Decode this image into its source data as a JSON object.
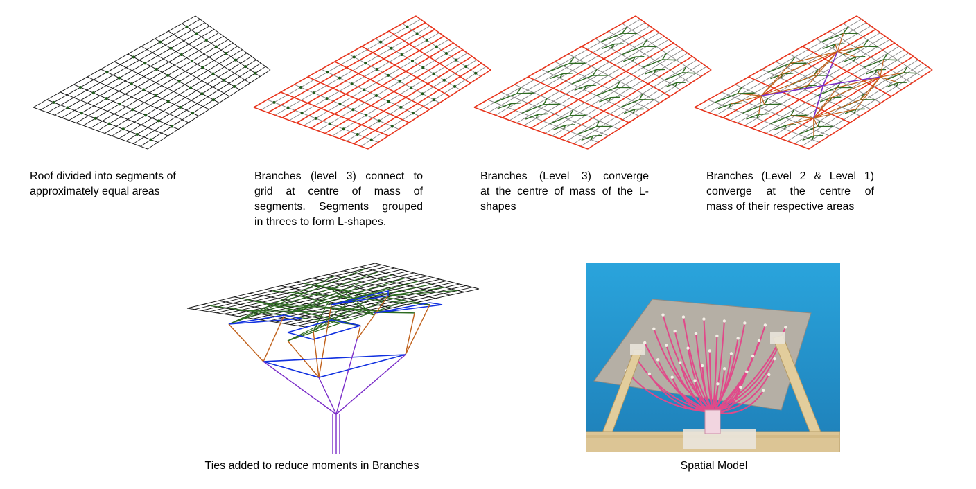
{
  "captions": {
    "panel1": [
      "Roof divided into segments of",
      "approximately equal areas"
    ],
    "panel2": [
      "Branches (level 3) connect to",
      "grid at centre of mass of",
      "segments. Segments grouped",
      "in threes to form L-shapes."
    ],
    "panel3": [
      "Branches (Level 3) converge",
      "at the centre of mass of the L-",
      "shapes"
    ],
    "panel4": [
      "Branches (Level 2 & Level 1)",
      "converge at the centre of",
      "mass of their respective areas"
    ],
    "panel5": "Ties added to reduce moments in Branches",
    "panel6": "Spatial Model"
  },
  "colors": {
    "grid": "#1a1a1a",
    "grid_light": "#8a8a8a",
    "segment_red": "#e8341c",
    "branch_green": "#2e6b22",
    "dot_green": "#1f5a1a",
    "level2_brown": "#c0601a",
    "level1_purple": "#7a2cc8",
    "tie_blue": "#1030e0",
    "photo_bg": "#2a9fd8",
    "photo_board": "#b9b3a8",
    "photo_strands": "#e04a8a",
    "photo_wood": "#e6d3a8"
  },
  "icons": {
    "photo": "spatial-model-photo"
  }
}
